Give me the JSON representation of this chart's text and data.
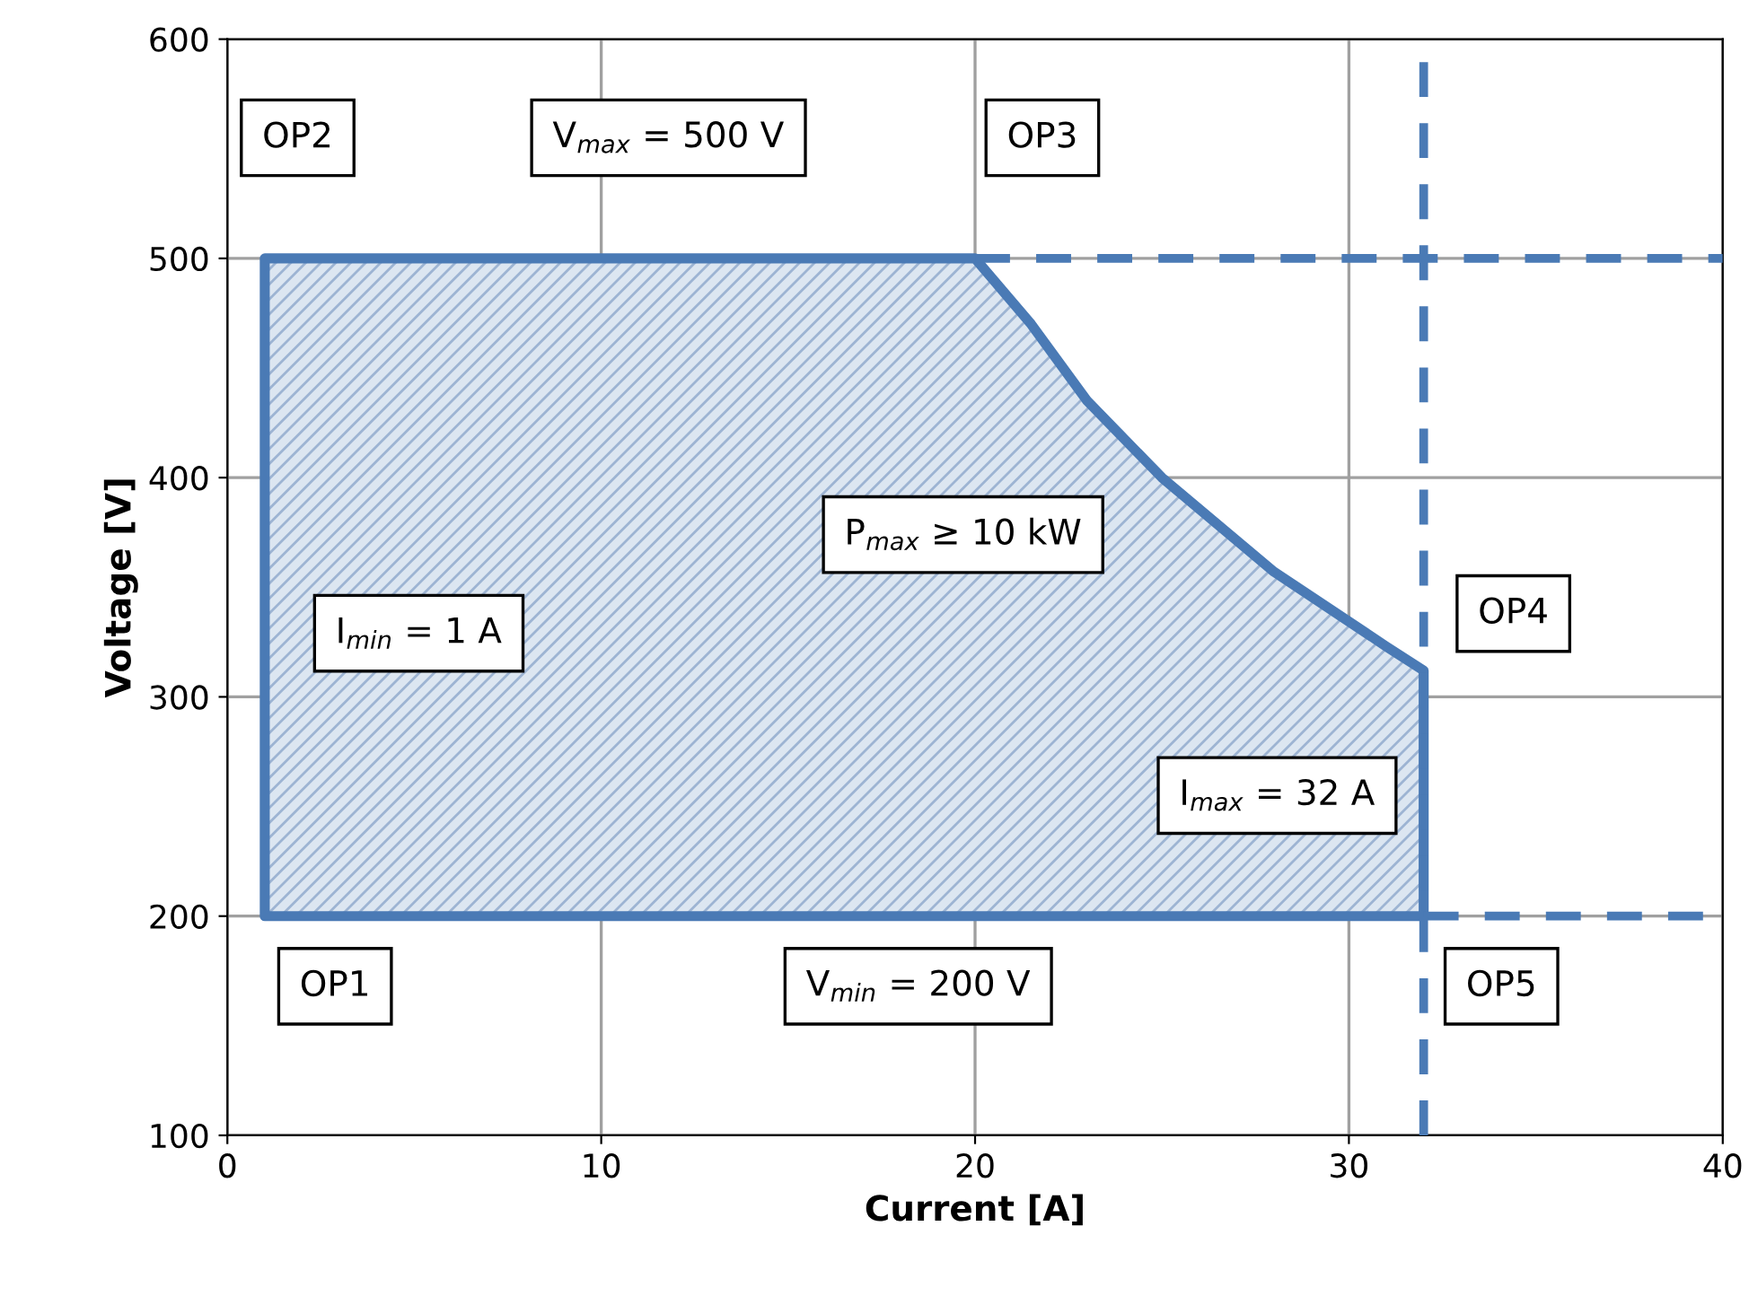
{
  "chart_data": {
    "type": "area",
    "xlabel": "Current [A]",
    "ylabel": "Voltage [V]",
    "series": [
      {
        "color": "#4a7ab5",
        "x": [
          1,
          1,
          20,
          21.5,
          23,
          25,
          28,
          31,
          32,
          32
        ],
        "values": [
          200,
          500,
          500,
          470,
          435,
          400,
          357,
          323,
          312,
          200
        ]
      }
    ],
    "xlim": [
      0,
      40
    ],
    "ylim": [
      100,
      600
    ],
    "xticks": [
      0,
      10,
      20,
      30,
      40
    ],
    "yticks": [
      100,
      200,
      300,
      400,
      500,
      600
    ],
    "grid": true,
    "ref_lines": [
      {
        "axis": "y",
        "value": 500,
        "color": "#4a7ab5",
        "line_style": "dashed"
      },
      {
        "axis": "y",
        "value": 200,
        "color": "#4a7ab5",
        "line_style": "dashed"
      },
      {
        "axis": "x",
        "value": 32,
        "color": "#4a7ab5",
        "line_style": "dashed"
      }
    ],
    "annotations": [
      "OP1",
      "OP2",
      "OP3",
      "OP4",
      "OP5",
      "V$_{max}$ = 500 V",
      "V$_{min}$ = 200 V",
      "I$_{min}$ = 1 A",
      "I$_{max}$ = 32 A",
      "P$_{max}$ ≥ 10 kW"
    ]
  }
}
